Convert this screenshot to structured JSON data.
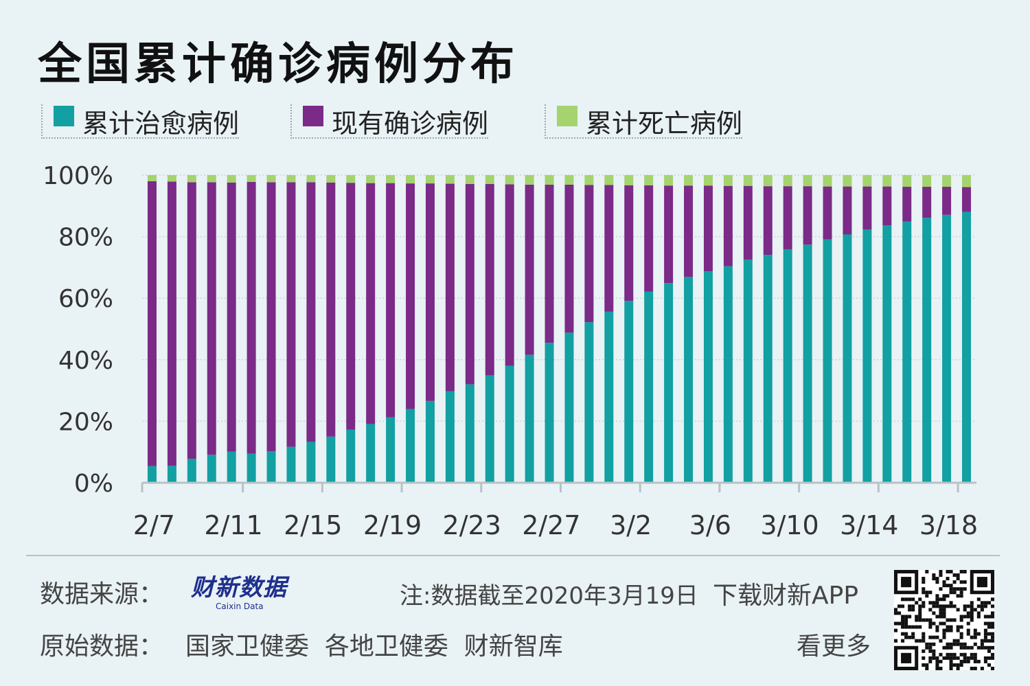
{
  "title": "全国累计确诊病例分布",
  "legend": [
    {
      "label": "累计治愈病例",
      "color": "#12a0a2"
    },
    {
      "label": "现有确诊病例",
      "color": "#7b2a87"
    },
    {
      "label": "累计死亡病例",
      "color": "#a5d36e"
    }
  ],
  "chart_data": {
    "type": "bar",
    "stacked": true,
    "categories": [
      "2/7",
      "2/8",
      "2/9",
      "2/10",
      "2/11",
      "2/12",
      "2/13",
      "2/14",
      "2/15",
      "2/16",
      "2/17",
      "2/18",
      "2/19",
      "2/20",
      "2/21",
      "2/22",
      "2/23",
      "2/24",
      "2/25",
      "2/26",
      "2/27",
      "2/28",
      "2/29",
      "3/1",
      "3/2",
      "3/3",
      "3/4",
      "3/5",
      "3/6",
      "3/7",
      "3/8",
      "3/9",
      "3/10",
      "3/11",
      "3/12",
      "3/13",
      "3/14",
      "3/15",
      "3/16",
      "3/17",
      "3/18",
      "3/19"
    ],
    "tick_labels": [
      "2/7",
      "2/11",
      "2/15",
      "2/19",
      "2/23",
      "2/27",
      "3/2",
      "3/6",
      "3/10",
      "3/14",
      "3/18"
    ],
    "y_ticks": [
      "0%",
      "20%",
      "40%",
      "60%",
      "80%",
      "100%"
    ],
    "ylim": [
      0,
      100
    ],
    "series": [
      {
        "name": "累计治愈病例",
        "color": "#12a0a2",
        "values": [
          5.4,
          5.5,
          7.8,
          9.1,
          10.1,
          9.5,
          10.2,
          11.7,
          13.3,
          15.0,
          17.3,
          19.1,
          21.3,
          24.0,
          26.6,
          29.8,
          32.0,
          34.9,
          38.0,
          41.6,
          45.5,
          48.8,
          52.2,
          55.6,
          59.1,
          62.1,
          64.9,
          66.9,
          68.7,
          70.4,
          72.5,
          74.1,
          75.9,
          77.4,
          79.1,
          80.7,
          82.3,
          83.7,
          84.9,
          86.1,
          87.1,
          88.0
        ]
      },
      {
        "name": "现有确诊病例",
        "color": "#7b2a87",
        "values": [
          92.6,
          92.4,
          89.9,
          88.6,
          87.5,
          88.3,
          87.5,
          86.0,
          84.4,
          82.6,
          80.2,
          78.3,
          76.1,
          73.3,
          70.7,
          67.4,
          65.1,
          62.2,
          59.0,
          55.3,
          51.4,
          48.1,
          44.6,
          41.2,
          37.6,
          34.6,
          31.7,
          29.7,
          27.9,
          26.1,
          24.0,
          22.3,
          20.5,
          19.0,
          17.2,
          15.6,
          14.0,
          12.6,
          11.3,
          10.1,
          9.1,
          8.1
        ]
      },
      {
        "name": "累计死亡病例",
        "color": "#a5d36e",
        "values": [
          2.0,
          2.1,
          2.3,
          2.3,
          2.4,
          2.2,
          2.3,
          2.3,
          2.3,
          2.4,
          2.5,
          2.6,
          2.6,
          2.7,
          2.7,
          2.8,
          2.9,
          2.9,
          3.0,
          3.1,
          3.1,
          3.1,
          3.2,
          3.2,
          3.3,
          3.3,
          3.4,
          3.4,
          3.4,
          3.5,
          3.5,
          3.6,
          3.6,
          3.6,
          3.7,
          3.7,
          3.7,
          3.7,
          3.8,
          3.8,
          3.8,
          3.9
        ]
      }
    ]
  },
  "footer": {
    "source_label": "数据来源：",
    "logo_text": "财新数据",
    "logo_sub": "Caixin Data",
    "note": "注:数据截至2020年3月19日",
    "download": "下载财新APP",
    "raw_label": "原始数据：",
    "raw_sources": "国家卫健委  各地卫健委  财新智库",
    "see_more": "看更多"
  }
}
